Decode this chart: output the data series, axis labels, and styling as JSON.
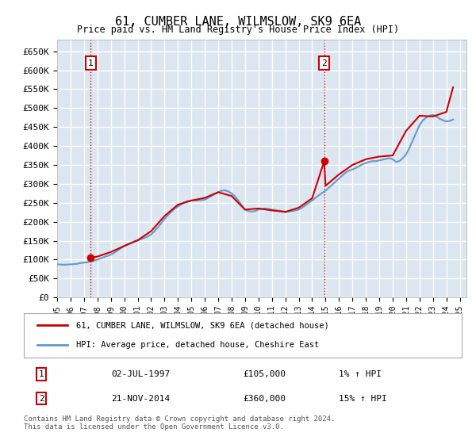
{
  "title": "61, CUMBER LANE, WILMSLOW, SK9 6EA",
  "subtitle": "Price paid vs. HM Land Registry's House Price Index (HPI)",
  "ylim": [
    0,
    680000
  ],
  "yticks": [
    0,
    50000,
    100000,
    150000,
    200000,
    250000,
    300000,
    350000,
    400000,
    450000,
    500000,
    550000,
    600000,
    650000
  ],
  "ytick_labels": [
    "£0",
    "£50K",
    "£100K",
    "£150K",
    "£200K",
    "£250K",
    "£300K",
    "£350K",
    "£400K",
    "£450K",
    "£500K",
    "£550K",
    "£600K",
    "£650K"
  ],
  "xlim_start": 1995.0,
  "xlim_end": 2025.5,
  "bg_color": "#dce6f1",
  "grid_color": "#ffffff",
  "sale1_x": 1997.5,
  "sale1_y": 105000,
  "sale1_label": "1",
  "sale1_date": "02-JUL-1997",
  "sale1_price": "£105,000",
  "sale1_hpi": "1% ↑ HPI",
  "sale2_x": 2014.9,
  "sale2_y": 360000,
  "sale2_label": "2",
  "sale2_date": "21-NOV-2014",
  "sale2_price": "£360,000",
  "sale2_hpi": "15% ↑ HPI",
  "line1_label": "61, CUMBER LANE, WILMSLOW, SK9 6EA (detached house)",
  "line2_label": "HPI: Average price, detached house, Cheshire East",
  "line1_color": "#cc0000",
  "line2_color": "#6699cc",
  "footer": "Contains HM Land Registry data © Crown copyright and database right 2024.\nThis data is licensed under the Open Government Licence v3.0.",
  "hpi_data_x": [
    1995.0,
    1995.25,
    1995.5,
    1995.75,
    1996.0,
    1996.25,
    1996.5,
    1996.75,
    1997.0,
    1997.25,
    1997.5,
    1997.75,
    1998.0,
    1998.25,
    1998.5,
    1998.75,
    1999.0,
    1999.25,
    1999.5,
    1999.75,
    2000.0,
    2000.25,
    2000.5,
    2000.75,
    2001.0,
    2001.25,
    2001.5,
    2001.75,
    2002.0,
    2002.25,
    2002.5,
    2002.75,
    2003.0,
    2003.25,
    2003.5,
    2003.75,
    2004.0,
    2004.25,
    2004.5,
    2004.75,
    2005.0,
    2005.25,
    2005.5,
    2005.75,
    2006.0,
    2006.25,
    2006.5,
    2006.75,
    2007.0,
    2007.25,
    2007.5,
    2007.75,
    2008.0,
    2008.25,
    2008.5,
    2008.75,
    2009.0,
    2009.25,
    2009.5,
    2009.75,
    2010.0,
    2010.25,
    2010.5,
    2010.75,
    2011.0,
    2011.25,
    2011.5,
    2011.75,
    2012.0,
    2012.25,
    2012.5,
    2012.75,
    2013.0,
    2013.25,
    2013.5,
    2013.75,
    2014.0,
    2014.25,
    2014.5,
    2014.75,
    2015.0,
    2015.25,
    2015.5,
    2015.75,
    2016.0,
    2016.25,
    2016.5,
    2016.75,
    2017.0,
    2017.25,
    2017.5,
    2017.75,
    2018.0,
    2018.25,
    2018.5,
    2018.75,
    2019.0,
    2019.25,
    2019.5,
    2019.75,
    2020.0,
    2020.25,
    2020.5,
    2020.75,
    2021.0,
    2021.25,
    2021.5,
    2021.75,
    2022.0,
    2022.25,
    2022.5,
    2022.75,
    2023.0,
    2023.25,
    2023.5,
    2023.75,
    2024.0,
    2024.25,
    2024.5
  ],
  "hpi_data_y": [
    88000,
    87000,
    86500,
    87000,
    87500,
    88000,
    89000,
    91000,
    92000,
    93000,
    95000,
    97000,
    100000,
    103000,
    107000,
    110000,
    113000,
    118000,
    124000,
    130000,
    136000,
    140000,
    144000,
    148000,
    151000,
    154000,
    157000,
    161000,
    166000,
    175000,
    185000,
    196000,
    207000,
    217000,
    226000,
    234000,
    240000,
    246000,
    252000,
    255000,
    256000,
    256000,
    256000,
    257000,
    258000,
    263000,
    268000,
    273000,
    278000,
    282000,
    283000,
    280000,
    275000,
    267000,
    256000,
    244000,
    232000,
    228000,
    227000,
    228000,
    232000,
    234000,
    235000,
    234000,
    232000,
    231000,
    229000,
    228000,
    226000,
    227000,
    228000,
    230000,
    232000,
    237000,
    243000,
    250000,
    256000,
    263000,
    270000,
    276000,
    282000,
    290000,
    298000,
    306000,
    314000,
    322000,
    330000,
    335000,
    338000,
    342000,
    347000,
    352000,
    355000,
    358000,
    360000,
    360000,
    362000,
    364000,
    366000,
    368000,
    365000,
    358000,
    360000,
    368000,
    378000,
    395000,
    415000,
    435000,
    455000,
    468000,
    475000,
    480000,
    482000,
    478000,
    472000,
    468000,
    465000,
    466000,
    470000
  ],
  "price_line_x": [
    1997.5,
    1998.0,
    1999.0,
    2000.0,
    2001.0,
    2002.0,
    2003.0,
    2004.0,
    2005.0,
    2006.0,
    2007.0,
    2008.0,
    2009.0,
    2010.0,
    2011.0,
    2012.0,
    2013.0,
    2014.0,
    2014.9,
    2015.0,
    2016.0,
    2017.0,
    2018.0,
    2019.0,
    2020.0,
    2021.0,
    2022.0,
    2023.0,
    2024.0,
    2024.5
  ],
  "price_line_y": [
    105000,
    108000,
    120000,
    136000,
    151000,
    175000,
    215000,
    245000,
    256000,
    263000,
    278000,
    268000,
    232000,
    235000,
    230000,
    226000,
    237000,
    262000,
    360000,
    295000,
    325000,
    350000,
    365000,
    372000,
    375000,
    440000,
    480000,
    478000,
    490000,
    555000
  ]
}
